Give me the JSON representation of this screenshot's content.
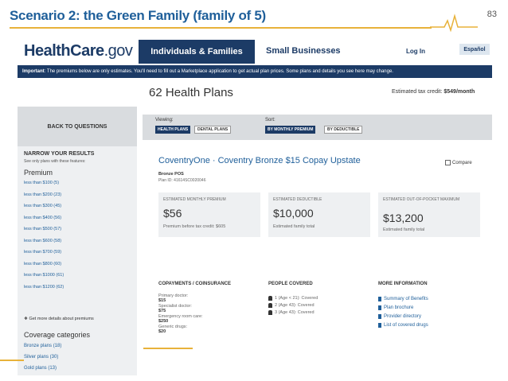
{
  "slide": {
    "title": "Scenario 2: the Green Family (family of 5)",
    "page_number": "83"
  },
  "header": {
    "logo_main": "HealthCare",
    "logo_suffix": ".gov",
    "nav_active": "Individuals & Families",
    "nav_item": "Small Businesses",
    "login": "Log In",
    "espanol": "Español"
  },
  "notice": {
    "label": "Important",
    "text": ": The premiums below are only estimates. You'll need to fill out a Marketplace application to get actual plan prices. Some plans and details you see here may change."
  },
  "results": {
    "count": "62",
    "label": "Health Plans",
    "tax_credit_label": "Estimated tax credit:",
    "tax_credit_value": "$549/month"
  },
  "sidebar": {
    "back_button": "BACK TO QUESTIONS",
    "narrow_title": "NARROW YOUR RESULTS",
    "narrow_sub": "See only plans with these features:",
    "premium_heading": "Premium",
    "premium_items": [
      "less than $100 (5)",
      "less than $200 (23)",
      "less than $300 (45)",
      "less than $400 (56)",
      "less than $500 (57)",
      "less than $600 (58)",
      "less than $700 (59)",
      "less than $800 (60)",
      "less than $1000 (61)",
      "less than $1200 (62)"
    ],
    "more_details": "Get more details about premiums",
    "coverage_heading": "Coverage categories",
    "coverage_items": [
      "Bronze plans (18)",
      "Silver plans (30)",
      "Gold plans (13)"
    ]
  },
  "viewing": {
    "viewing_label": "Viewing:",
    "health_plans": "HEALTH PLANS",
    "dental_plans": "DENTAL PLANS",
    "sort_label": "Sort:",
    "by_premium": "BY MONTHLY PREMIUM",
    "by_deductible": "BY DEDUCTIBLE"
  },
  "plan": {
    "name": "CoventryOne · Coventry Bronze $15 Copay Upstate",
    "compare": "Compare",
    "metal": "Bronze  POS",
    "plan_id": "Plan ID: 41614SC0020046",
    "premium_label": "ESTIMATED MONTHLY PREMIUM",
    "premium_value": "$56",
    "premium_sub": "Premium before tax credit: $605",
    "deductible_label": "ESTIMATED DEDUCTIBLE",
    "deductible_value": "$10,000",
    "deductible_sub": "Estimated family total",
    "oop_label": "ESTIMATED OUT-OF-POCKET MAXIMUM",
    "oop_value": "$13,200",
    "oop_sub": "Estimated family total",
    "copay_heading": "COPAYMENTS / COINSURANCE",
    "copays": [
      {
        "label": "Primary doctor:",
        "value": "$15"
      },
      {
        "label": "Specialist doctor:",
        "value": "$75"
      },
      {
        "label": "Emergency room care:",
        "value": "$250"
      },
      {
        "label": "Generic drugs:",
        "value": "$20"
      }
    ],
    "people_heading": "PEOPLE COVERED",
    "people": [
      "1 (Age < 21): Covered",
      "2 (Age 43): Covered",
      "3 (Age 43): Covered"
    ],
    "info_heading": "MORE INFORMATION",
    "info_links": [
      "Summary of Benefits",
      "Plan brochure",
      "Provider directory",
      "List of covered drugs"
    ]
  }
}
